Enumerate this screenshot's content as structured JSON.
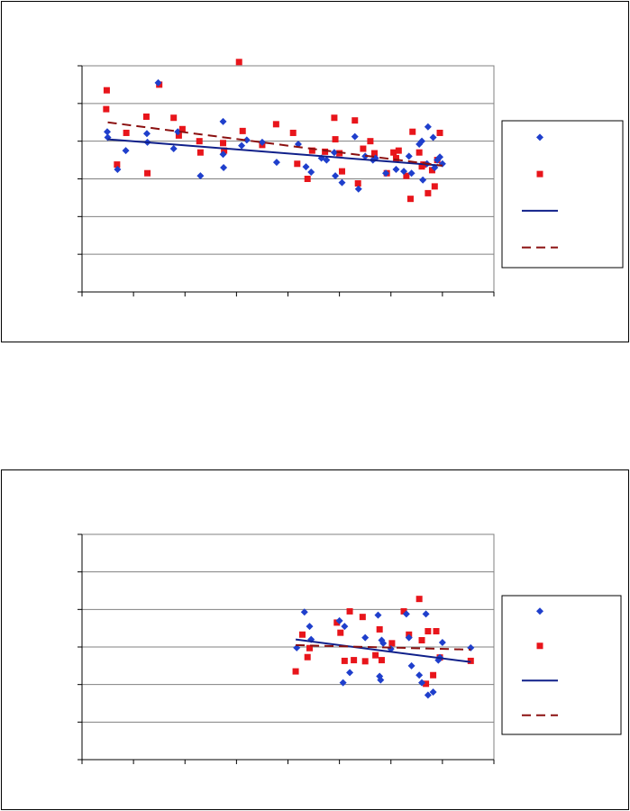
{
  "chart_data": [
    {
      "type": "scatter",
      "title": "",
      "xlabel": "",
      "ylabel": "",
      "grid": true,
      "legend_position": "right",
      "xlim": [
        0,
        8
      ],
      "ylim": [
        0,
        6
      ],
      "colors": {
        "series_a": "#1f3fcc",
        "series_b": "#e8151b",
        "trend_a": "#10208a",
        "trend_b": "#8b1010"
      },
      "series": [
        {
          "name": "",
          "marker": "diamond",
          "x": [
            0.49,
            0.5,
            0.69,
            0.85,
            1.26,
            1.27,
            1.48,
            1.78,
            1.86,
            2.3,
            2.74,
            2.74,
            2.75,
            3.1,
            3.2,
            3.5,
            3.78,
            4.2,
            4.35,
            4.45,
            4.65,
            4.75,
            4.9,
            4.92,
            5.05,
            5.3,
            5.37,
            5.5,
            5.65,
            5.7,
            5.9,
            6.1,
            6.25,
            6.35,
            6.4,
            6.55,
            6.6,
            6.62,
            6.7,
            6.72,
            6.82,
            6.85,
            6.9,
            6.95,
            7.0
          ],
          "y": [
            4.25,
            4.1,
            3.25,
            3.75,
            4.2,
            3.97,
            5.55,
            3.8,
            4.25,
            3.08,
            4.52,
            3.65,
            3.3,
            3.88,
            4.03,
            3.97,
            3.44,
            3.92,
            3.32,
            3.18,
            3.55,
            3.5,
            3.7,
            3.08,
            2.9,
            4.12,
            2.73,
            3.6,
            3.5,
            3.55,
            3.15,
            3.25,
            3.2,
            3.6,
            3.15,
            3.92,
            4.0,
            2.97,
            3.4,
            4.38,
            4.1,
            3.3,
            3.5,
            3.58,
            3.4
          ]
        },
        {
          "name": "",
          "marker": "square",
          "x": [
            0.48,
            0.47,
            0.68,
            0.86,
            1.25,
            1.27,
            1.5,
            1.78,
            1.88,
            1.95,
            2.28,
            2.3,
            2.74,
            2.76,
            3.05,
            3.12,
            3.5,
            3.77,
            4.1,
            4.18,
            4.38,
            4.47,
            4.72,
            4.9,
            4.92,
            5.0,
            5.05,
            5.3,
            5.36,
            5.46,
            5.6,
            5.68,
            5.92,
            6.05,
            6.1,
            6.15,
            6.3,
            6.38,
            6.42,
            6.55,
            6.6,
            6.63,
            6.72,
            6.8,
            6.85,
            6.9,
            6.95
          ],
          "y": [
            5.35,
            4.85,
            3.38,
            4.22,
            4.65,
            3.15,
            5.5,
            4.62,
            4.15,
            4.32,
            4.0,
            3.7,
            3.95,
            3.75,
            6.1,
            4.27,
            3.9,
            4.45,
            4.22,
            3.4,
            3.0,
            3.75,
            3.72,
            4.62,
            4.05,
            3.68,
            3.2,
            4.55,
            2.88,
            3.8,
            4.0,
            3.68,
            3.15,
            3.7,
            3.55,
            3.75,
            3.08,
            2.47,
            4.25,
            3.7,
            3.33,
            3.38,
            2.62,
            3.23,
            2.8,
            3.5,
            4.22
          ]
        },
        {
          "name": "",
          "type": "line",
          "style": "solid",
          "x": [
            0.5,
            7.0
          ],
          "y": [
            4.05,
            3.35
          ]
        },
        {
          "name": "",
          "type": "line",
          "style": "dashed",
          "x": [
            0.5,
            7.0
          ],
          "y": [
            4.5,
            3.35
          ]
        }
      ]
    },
    {
      "type": "scatter",
      "title": "",
      "xlabel": "",
      "ylabel": "",
      "grid": true,
      "legend_position": "right",
      "xlim": [
        0,
        8
      ],
      "ylim": [
        0,
        6
      ],
      "colors": {
        "series_a": "#1f3fcc",
        "series_b": "#e8151b",
        "trend_a": "#10208a",
        "trend_b": "#8b1010"
      },
      "series": [
        {
          "name": "",
          "marker": "diamond",
          "x": [
            4.17,
            4.32,
            4.42,
            4.45,
            5.0,
            5.07,
            5.1,
            5.2,
            5.5,
            5.75,
            5.78,
            5.8,
            5.82,
            5.85,
            6.0,
            6.3,
            6.35,
            6.4,
            6.55,
            6.6,
            6.68,
            6.72,
            6.82,
            6.92,
            6.95,
            7.0,
            7.55
          ],
          "y": [
            2.98,
            3.93,
            3.55,
            3.2,
            3.7,
            2.05,
            3.55,
            2.32,
            3.25,
            3.85,
            2.22,
            2.12,
            3.18,
            3.1,
            2.95,
            3.88,
            3.25,
            2.5,
            2.25,
            2.05,
            3.88,
            1.72,
            1.8,
            2.65,
            2.72,
            3.12,
            2.98
          ],
          "x_note": "",
          "y_note": ""
        },
        {
          "name": "",
          "marker": "square",
          "x": [
            4.15,
            4.28,
            4.38,
            4.42,
            4.95,
            5.02,
            5.1,
            5.2,
            5.28,
            5.45,
            5.5,
            5.7,
            5.78,
            5.82,
            6.02,
            6.25,
            6.35,
            6.55,
            6.6,
            6.68,
            6.72,
            6.82,
            6.88,
            6.95,
            7.55
          ],
          "y": [
            2.35,
            3.33,
            2.73,
            2.97,
            3.65,
            3.38,
            2.63,
            3.95,
            2.65,
            3.8,
            2.62,
            2.78,
            3.47,
            2.65,
            3.1,
            3.95,
            3.33,
            4.28,
            3.18,
            2.02,
            3.42,
            2.25,
            3.42,
            2.72,
            2.63
          ]
        },
        {
          "name": "",
          "type": "line",
          "style": "solid",
          "x": [
            4.15,
            7.55
          ],
          "y": [
            3.2,
            2.6
          ]
        },
        {
          "name": "",
          "type": "line",
          "style": "dashed",
          "x": [
            4.15,
            7.55
          ],
          "y": [
            3.05,
            2.93
          ]
        }
      ]
    }
  ]
}
